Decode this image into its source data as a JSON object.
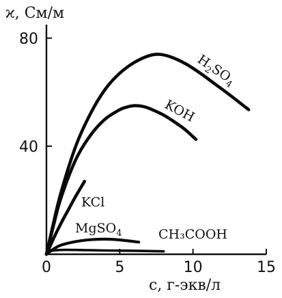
{
  "chart_data": {
    "type": "line",
    "ylabel": "ϰ, См/м",
    "xlabel": "c, г-экв/л",
    "xlim": [
      0,
      15
    ],
    "ylim": [
      0,
      85
    ],
    "x_ticks": [
      0,
      5,
      10,
      15
    ],
    "y_ticks": [
      40,
      80
    ],
    "grid": false,
    "series": [
      {
        "name": "H2SO4",
        "label_main": "H",
        "label_sub1": "2",
        "label_mid": "SO",
        "label_sub2": "4",
        "x": [
          0,
          0.5,
          1,
          2,
          3,
          4,
          5,
          6,
          7,
          7.7,
          8.5,
          9.5,
          10.5,
          11.5,
          12.5,
          13.8
        ],
        "y": [
          0,
          12,
          23,
          40,
          52,
          61,
          67,
          71,
          73.5,
          74,
          73,
          70.5,
          67,
          63,
          59,
          53.5
        ]
      },
      {
        "name": "KOH",
        "x": [
          0,
          0.5,
          1,
          2,
          3,
          4,
          5,
          5.5,
          6,
          6.5,
          7,
          8,
          9,
          9.5,
          10.2
        ],
        "y": [
          0,
          11,
          21,
          35,
          44,
          50,
          53.5,
          54.5,
          55,
          54.8,
          54,
          51.5,
          48,
          46,
          42.5
        ]
      },
      {
        "name": "KCl",
        "x": [
          0,
          0.5,
          1,
          1.5,
          2,
          2.6
        ],
        "y": [
          0,
          6,
          11.5,
          16.5,
          21.5,
          27
        ]
      },
      {
        "name": "MgSO4",
        "label_main": "MgSO",
        "label_sub": "4",
        "x": [
          0,
          0.5,
          1,
          2,
          3,
          4,
          5,
          6.3
        ],
        "y": [
          0,
          2,
          3.4,
          4.7,
          5.4,
          5.6,
          5.3,
          4.5
        ]
      },
      {
        "name": "CH3COOH",
        "label_text": "CH₃COOH",
        "x": [
          0,
          0.3,
          1,
          2,
          4,
          6,
          8
        ],
        "y": [
          0,
          1.2,
          1.6,
          1.6,
          1.4,
          1.3,
          1.1
        ]
      }
    ]
  }
}
